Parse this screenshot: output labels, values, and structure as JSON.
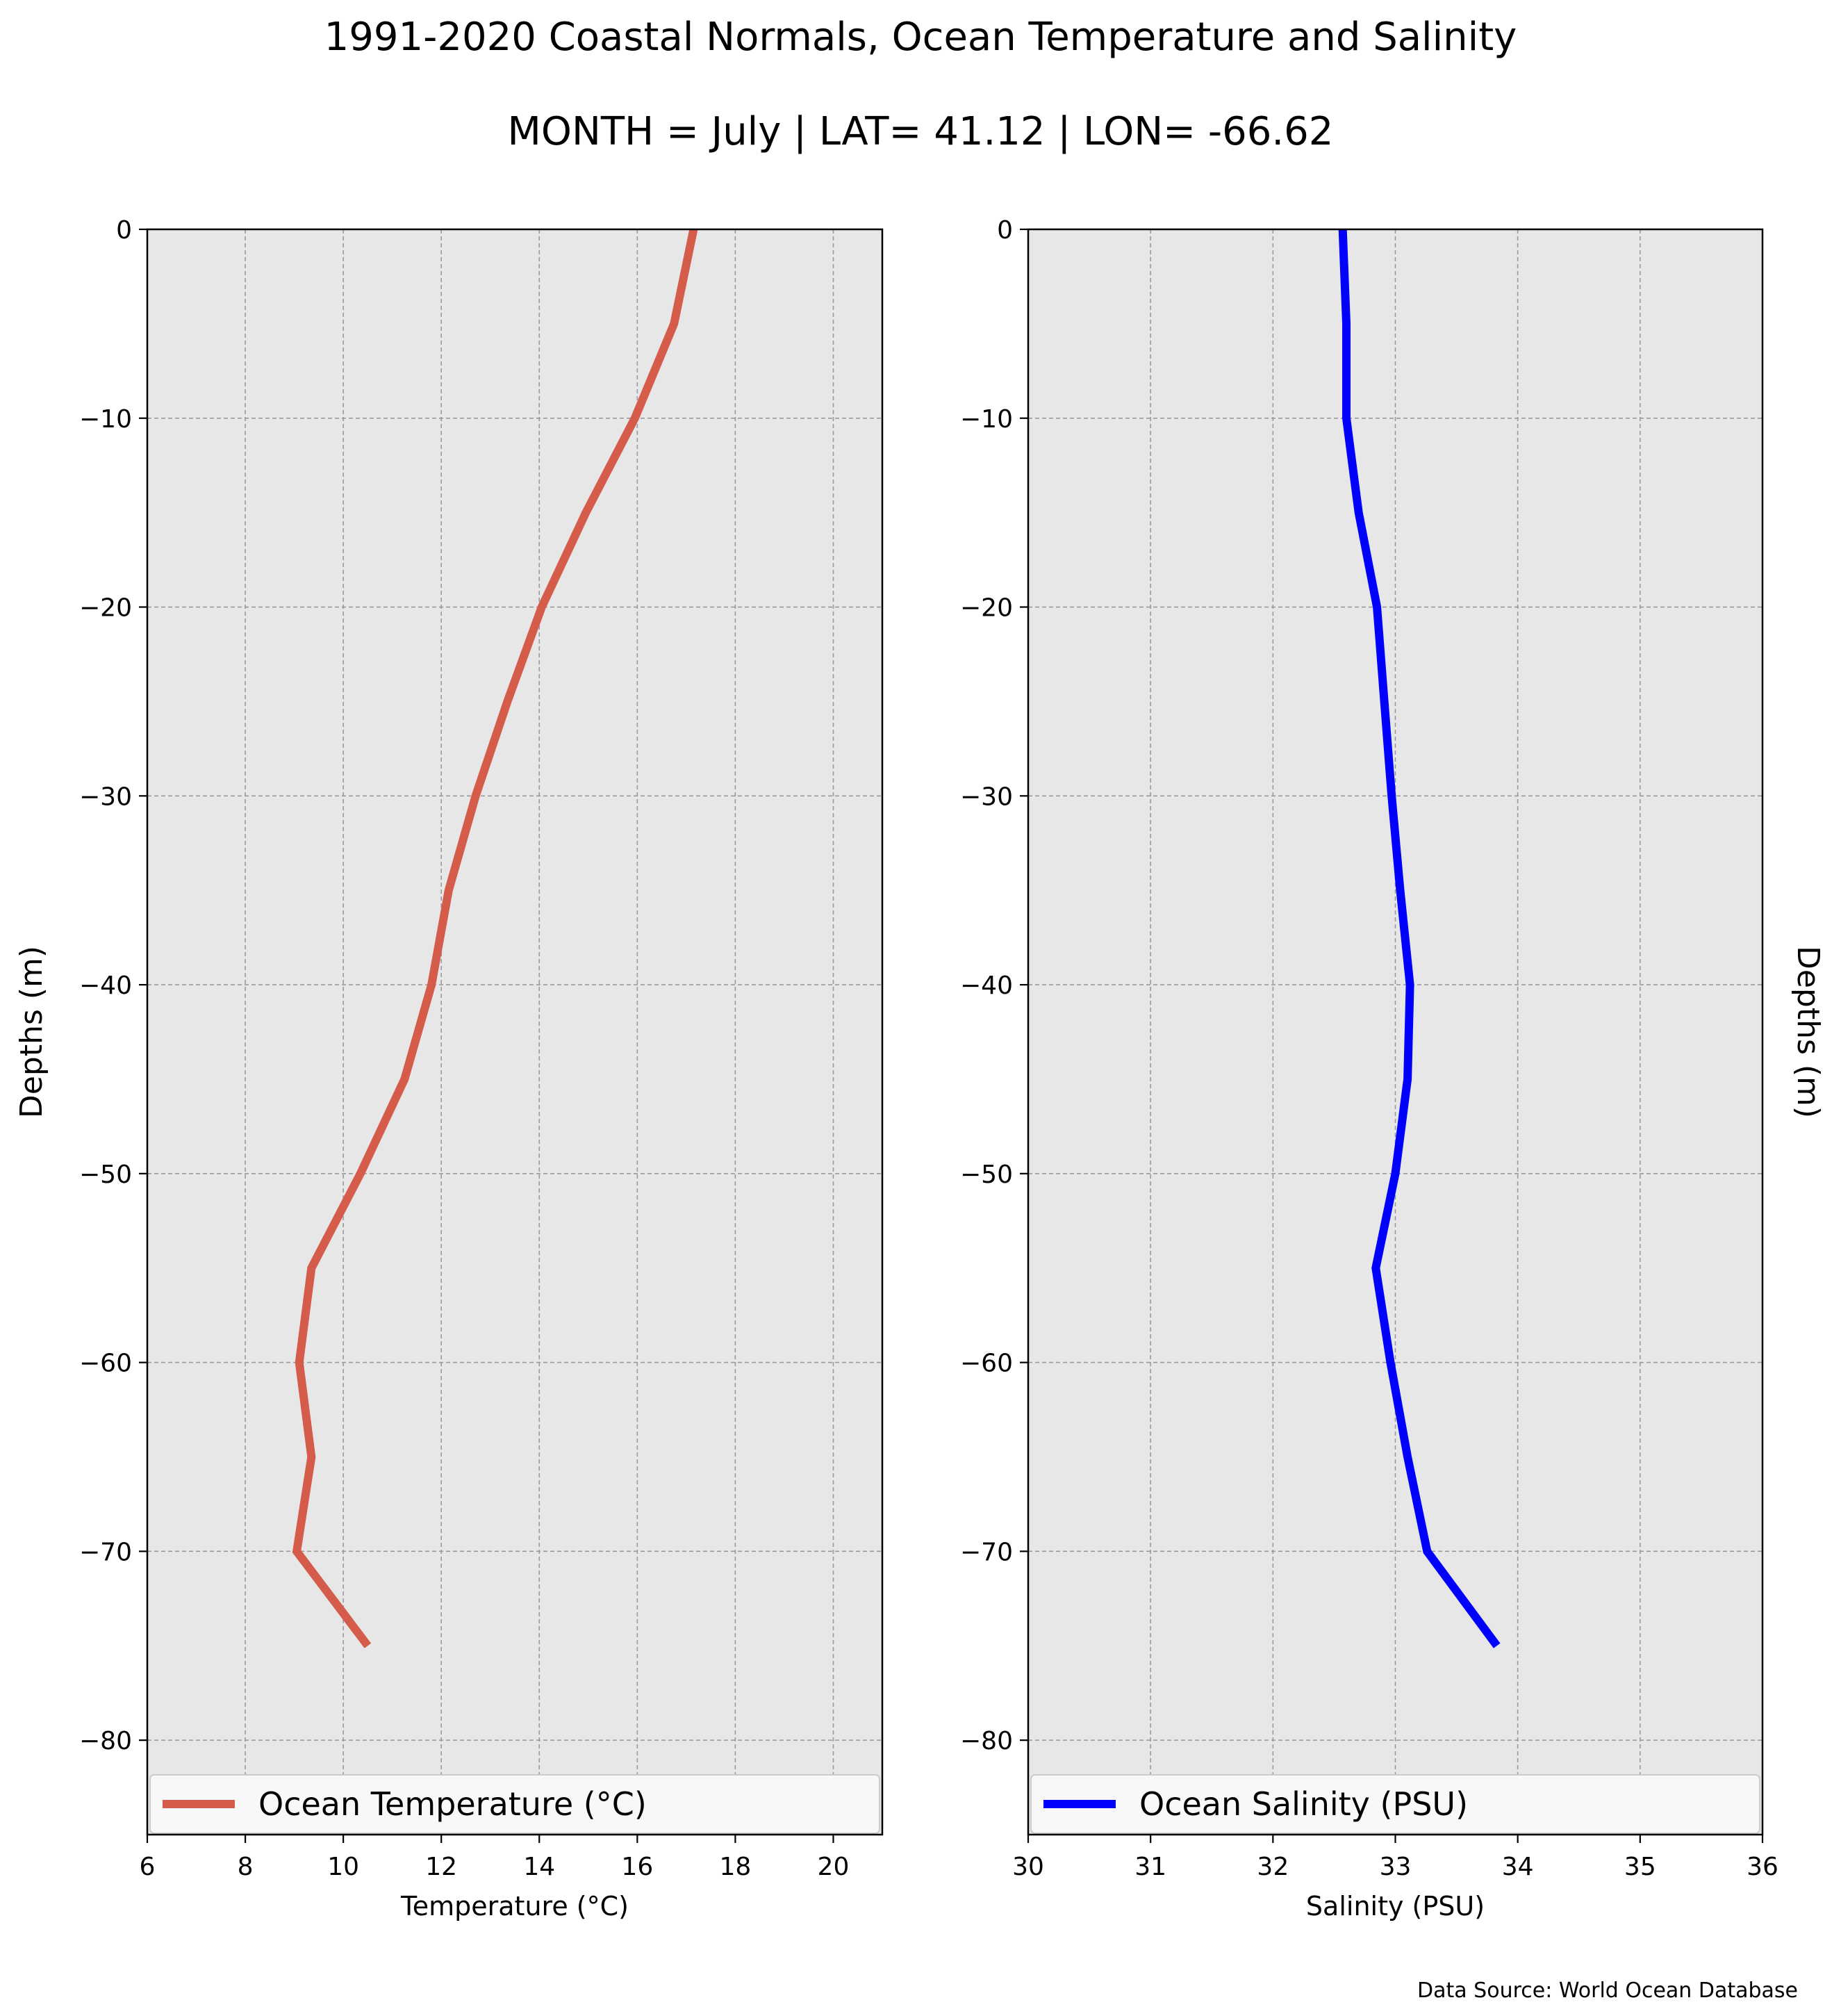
{
  "figure": {
    "title": "1991-2020 Coastal Normals, Ocean Temperature and Salinity",
    "subtitle": "MONTH = July | LAT= 41.12 | LON= -66.62",
    "source": "Data Source: World Ocean Database",
    "colors": {
      "background": "#ffffff",
      "plot_background": "#e7e7e7",
      "grid": "#9a9a9a",
      "temperature": "#d55c4a",
      "salinity": "#0000ff"
    }
  },
  "chart_data": [
    {
      "type": "line",
      "id": "temperature",
      "xlabel": "Temperature ($^\\circ$C)",
      "ylabel": "Depths (m)",
      "ylabel_side": "left",
      "xlim": [
        6,
        21
      ],
      "ylim": [
        -85,
        0
      ],
      "xticks": [
        6,
        8,
        10,
        12,
        14,
        16,
        18,
        20
      ],
      "xtick_labels": [
        "6",
        "8",
        "10",
        "12",
        "14",
        "16",
        "18",
        "20"
      ],
      "yticks": [
        0,
        -10,
        -20,
        -30,
        -40,
        -50,
        -60,
        -70,
        -80
      ],
      "ytick_labels": [
        "0",
        "−10",
        "−20",
        "−30",
        "−40",
        "−50",
        "−60",
        "−70",
        "−80"
      ],
      "grid": true,
      "legend_placement": "lower-center",
      "series": [
        {
          "name": "Ocean Temperature ($^\\circ$C)",
          "color": "#d55c4a",
          "x": [
            17.15,
            16.75,
            15.95,
            14.95,
            14.05,
            13.35,
            12.7,
            12.15,
            11.8,
            11.25,
            10.35,
            9.35,
            9.1,
            9.35,
            9.05,
            10.5
          ],
          "y": [
            0,
            -5,
            -10,
            -15,
            -20,
            -25,
            -30,
            -35,
            -40,
            -45,
            -50,
            -55,
            -60,
            -65,
            -70,
            -75
          ]
        }
      ]
    },
    {
      "type": "line",
      "id": "salinity",
      "xlabel": "Salinity (PSU)",
      "ylabel": "Depths (m)",
      "ylabel_side": "right",
      "xlim": [
        30,
        36
      ],
      "ylim": [
        -85,
        0
      ],
      "xticks": [
        30,
        31,
        32,
        33,
        34,
        35,
        36
      ],
      "xtick_labels": [
        "30",
        "31",
        "32",
        "33",
        "34",
        "35",
        "36"
      ],
      "yticks": [
        0,
        -10,
        -20,
        -30,
        -40,
        -50,
        -60,
        -70,
        -80
      ],
      "ytick_labels": [
        "0",
        "−10",
        "−20",
        "−30",
        "−40",
        "−50",
        "−60",
        "−70",
        "−80"
      ],
      "grid": true,
      "legend_placement": "lower-center",
      "series": [
        {
          "name": "Ocean Salinity (PSU)",
          "color": "#0000ff",
          "x": [
            32.57,
            32.6,
            32.6,
            32.7,
            32.85,
            32.91,
            32.97,
            33.04,
            33.12,
            33.1,
            33.0,
            32.84,
            32.96,
            33.1,
            33.26,
            33.83
          ],
          "y": [
            0,
            -5,
            -10,
            -15,
            -20,
            -25,
            -30,
            -35,
            -40,
            -45,
            -50,
            -55,
            -60,
            -65,
            -70,
            -75
          ]
        }
      ]
    }
  ]
}
